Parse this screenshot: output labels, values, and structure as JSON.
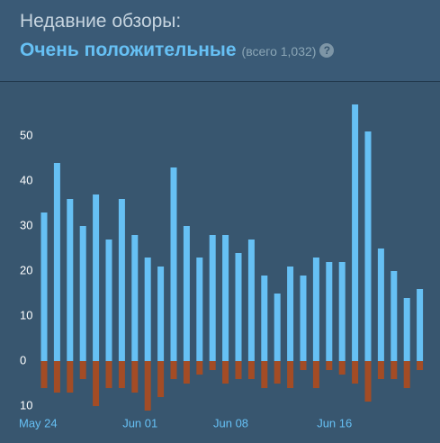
{
  "header": {
    "title": "Недавние обзоры:",
    "rating": "Очень положительные",
    "total": "(всего 1,032)",
    "help": "?"
  },
  "chart_data": {
    "type": "bar",
    "categories": [
      "May 24",
      null,
      null,
      null,
      null,
      null,
      null,
      null,
      "Jun 01",
      null,
      null,
      null,
      null,
      null,
      null,
      "Jun 08",
      null,
      null,
      null,
      null,
      null,
      null,
      null,
      "Jun 16",
      null,
      null,
      null,
      null,
      null,
      null
    ],
    "series": [
      {
        "color": "#66c0f4",
        "values": [
          33,
          44,
          36,
          30,
          37,
          27,
          36,
          28,
          23,
          21,
          43,
          30,
          23,
          28,
          28,
          24,
          27,
          19,
          15,
          21,
          19,
          23,
          22,
          22,
          57,
          51,
          25,
          20,
          14,
          16
        ]
      },
      {
        "color": "#a34c25",
        "values": [
          -6,
          -7,
          -7,
          -4,
          -10,
          -6,
          -6,
          -7,
          -11,
          -8,
          -4,
          -5,
          -3,
          -2,
          -5,
          -4,
          -4,
          -6,
          -5,
          -6,
          -2,
          -6,
          -2,
          -3,
          -5,
          -9,
          -4,
          -4,
          -6,
          -2
        ]
      }
    ],
    "ylim": [
      -12,
      60
    ],
    "yticks": [
      {
        "value": -10,
        "label": "10"
      },
      0,
      10,
      20,
      30,
      40,
      50
    ]
  }
}
